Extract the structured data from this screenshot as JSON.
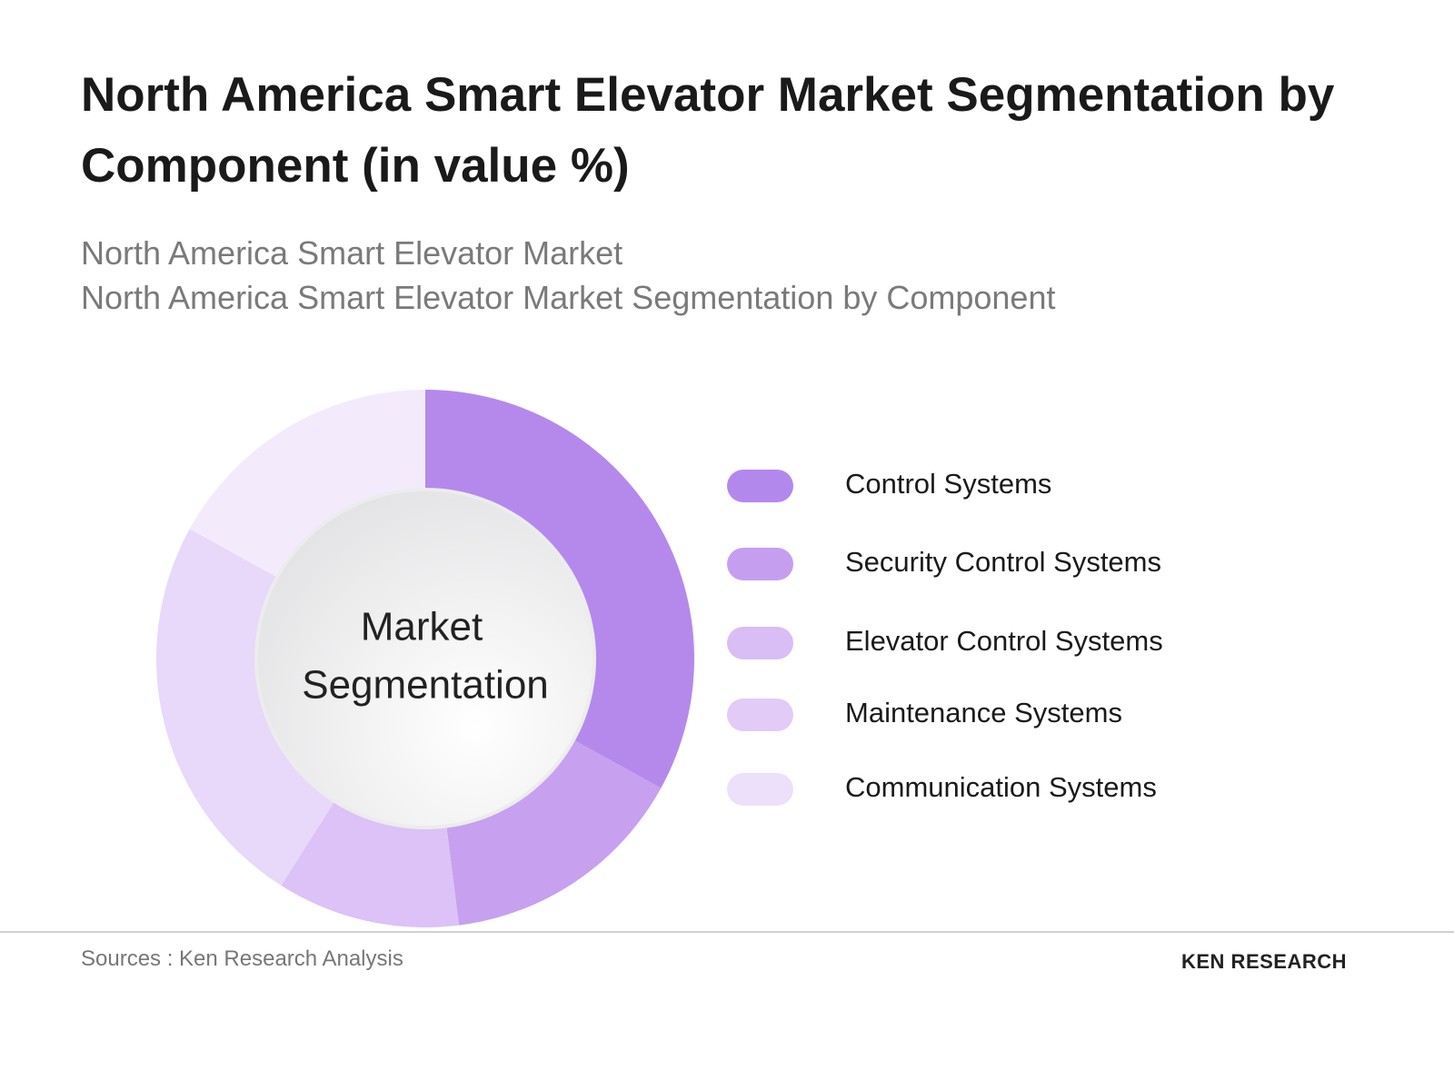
{
  "chart_data": {
    "type": "donut",
    "title": "North America Smart Elevator Market Segmentation by Component (in value %)",
    "subtitles": [
      "North America Smart Elevator Market",
      "North America Smart Elevator Market Segmentation by Component"
    ],
    "center_label": [
      "Market",
      "Segmentation"
    ],
    "categories": [
      "Control Systems",
      "Security Control Systems",
      "Elevator Control Systems",
      "Maintenance Systems",
      "Communication Systems"
    ],
    "values": [
      33,
      15,
      11,
      24,
      17
    ],
    "colors": [
      "#b589eb",
      "#c7a0ef",
      "#dcc2f6",
      "#e8d8f9",
      "#f3ebfb"
    ],
    "legend_colors": [
      "#b388ec",
      "#c69ef0",
      "#d9bdf5",
      "#e2cbf7",
      "#ede0fa"
    ],
    "source": "Sources : Ken Research Analysis",
    "logo": "KEN RESEARCH"
  }
}
